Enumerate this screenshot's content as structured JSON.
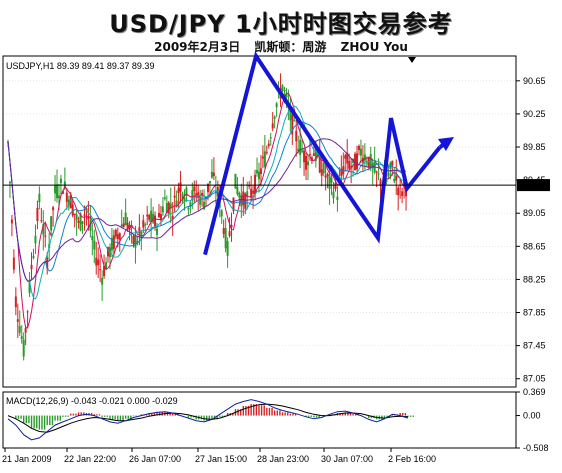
{
  "header": {
    "title": "USD/JPY 1小时时图交易参考",
    "date": "2009年2月3日",
    "author_label": "凯斯顿：周游",
    "author_name": "ZHOU You"
  },
  "chart_data": [
    {
      "type": "line",
      "title": "USDJPY,H1 89.39 89.41 89.37 89.39",
      "symbol": "USDJPY",
      "timeframe": "H1",
      "ohlc_readout": {
        "open": 89.39,
        "high": 89.41,
        "low": 89.37,
        "close": 89.39
      },
      "current_price": "89.39",
      "y_ticks": [
        "90.65",
        "90.25",
        "89.85",
        "89.45",
        "89.05",
        "88.65",
        "88.25",
        "87.85",
        "87.45",
        "87.05"
      ],
      "ylim": [
        86.95,
        90.95
      ],
      "x_ticks": [
        "21 Jan 2009",
        "22 Jan 22:00",
        "26 Jan 07:00",
        "27 Jan 15:00",
        "28 Jan 23:00",
        "30 Jan 07:00",
        "2 Feb 16:00"
      ],
      "price_path": [
        89.9,
        88.0,
        87.4,
        88.4,
        89.2,
        88.5,
        89.3,
        89.4,
        89.2,
        88.9,
        89.1,
        88.6,
        88.3,
        88.6,
        88.8,
        89.0,
        88.7,
        88.8,
        89.0,
        88.9,
        89.2,
        89.1,
        89.4,
        89.2,
        89.3,
        89.2,
        89.5,
        89.2,
        88.6,
        89.4,
        89.2,
        89.3,
        89.5,
        89.8,
        90.3,
        90.6,
        90.2,
        89.9,
        89.7,
        89.8,
        89.6,
        89.4,
        89.3,
        89.7,
        89.6,
        89.8,
        89.7,
        89.5,
        89.4,
        89.6,
        89.3,
        89.4
      ],
      "annotation_path": [
        88.55,
        90.95,
        89.55,
        88.75,
        90.2,
        89.35,
        89.85
      ],
      "annotation_arrow": true
    },
    {
      "type": "bar",
      "title": "MACD(12,26,9) -0.043 -0.021 0.000 -0.029",
      "y_ticks": [
        "0.369",
        "0.00",
        "-0.508"
      ],
      "ylim": [
        -0.508,
        0.369
      ],
      "histogram": [
        0.0,
        -0.05,
        -0.12,
        -0.2,
        -0.22,
        -0.15,
        -0.08,
        -0.02,
        0.03,
        0.05,
        0.04,
        0.02,
        -0.02,
        -0.06,
        -0.08,
        -0.05,
        -0.01,
        0.02,
        0.04,
        0.06,
        0.05,
        0.03,
        0.0,
        -0.03,
        -0.06,
        -0.08,
        -0.06,
        -0.02,
        0.04,
        0.1,
        0.15,
        0.18,
        0.16,
        0.12,
        0.08,
        0.05,
        0.03,
        0.0,
        -0.02,
        -0.03,
        -0.01,
        0.02,
        0.04,
        0.05,
        0.03,
        0.0,
        -0.04,
        -0.06,
        -0.03,
        0.02,
        0.04,
        -0.02
      ],
      "macd_line": [
        -0.05,
        -0.15,
        -0.3,
        -0.38,
        -0.35,
        -0.25,
        -0.15,
        -0.1,
        -0.05,
        0.0,
        0.02,
        0.0,
        -0.05,
        -0.1,
        -0.12,
        -0.08,
        -0.03,
        0.0,
        0.03,
        0.05,
        0.06,
        0.04,
        0.0,
        -0.04,
        -0.08,
        -0.1,
        -0.06,
        0.02,
        0.1,
        0.18,
        0.22,
        0.25,
        0.22,
        0.18,
        0.12,
        0.08,
        0.05,
        0.02,
        -0.02,
        -0.05,
        -0.03,
        0.02,
        0.06,
        0.07,
        0.04,
        0.0,
        -0.06,
        -0.1,
        -0.05,
        0.02,
        0.0,
        -0.04
      ],
      "signal_line": [
        0.0,
        -0.05,
        -0.12,
        -0.2,
        -0.25,
        -0.26,
        -0.22,
        -0.17,
        -0.12,
        -0.08,
        -0.05,
        -0.03,
        -0.04,
        -0.06,
        -0.08,
        -0.08,
        -0.06,
        -0.04,
        -0.01,
        0.01,
        0.03,
        0.04,
        0.03,
        0.01,
        -0.02,
        -0.05,
        -0.06,
        -0.04,
        0.0,
        0.05,
        0.1,
        0.14,
        0.17,
        0.18,
        0.17,
        0.15,
        0.12,
        0.09,
        0.05,
        0.02,
        0.0,
        0.0,
        0.02,
        0.04,
        0.04,
        0.03,
        0.0,
        -0.03,
        -0.04,
        -0.02,
        -0.01,
        -0.02
      ]
    }
  ],
  "colors": {
    "annotation": "#1515d8",
    "bull_candle": "#2a9a2a",
    "bear_candle": "#d42020",
    "ma_fast": "#d01060",
    "ma_mid": "#1080d0",
    "ma_slow": "#7020a0",
    "ma_cyan": "#10b0b0",
    "macd_line": "#1020a0",
    "signal_line": "#000000",
    "grid": "#d9d9d9"
  },
  "icons": {
    "scroll_marker": "triangle-down-icon"
  }
}
